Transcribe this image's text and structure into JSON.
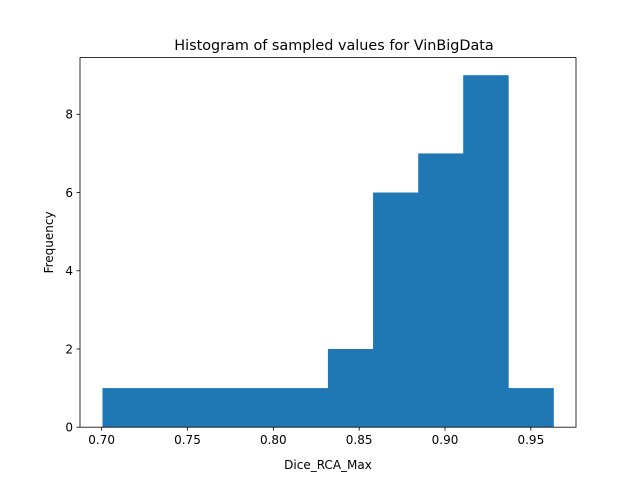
{
  "chart_data": {
    "type": "bar",
    "title": "Histogram of sampled values for VinBigData",
    "xlabel": "Dice_RCA_Max",
    "ylabel": "Frequency",
    "bin_edges": [
      0.7005,
      0.7267,
      0.753,
      0.7793,
      0.8056,
      0.8318,
      0.8581,
      0.8844,
      0.9106,
      0.9369,
      0.9632
    ],
    "values": [
      1,
      1,
      1,
      1,
      1,
      2,
      6,
      7,
      9,
      1
    ],
    "xlim": [
      0.6874,
      0.9763
    ],
    "ylim": [
      0,
      9.45
    ],
    "xticks": [
      0.7,
      0.75,
      0.8,
      0.85,
      0.9,
      0.95
    ],
    "xtick_labels": [
      "0.70",
      "0.75",
      "0.80",
      "0.85",
      "0.90",
      "0.95"
    ],
    "yticks": [
      0,
      2,
      4,
      6,
      8
    ],
    "ytick_labels": [
      "0",
      "2",
      "4",
      "6",
      "8"
    ],
    "bar_color": "#1f77b4",
    "grid": false
  }
}
